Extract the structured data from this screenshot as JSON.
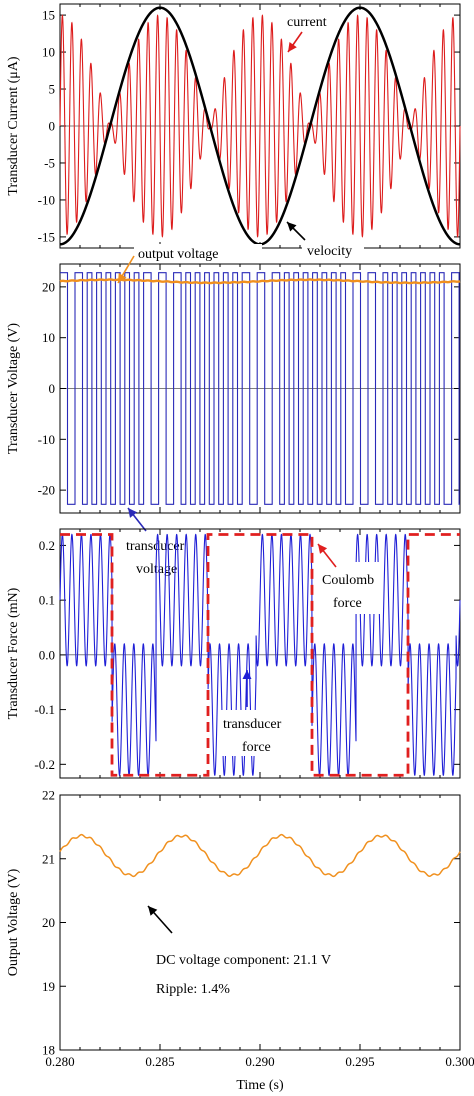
{
  "chart_data": [
    {
      "type": "line",
      "ylabel": "Transducer Current (μA)",
      "xlim": [
        0.28,
        0.3
      ],
      "ylim": [
        -16.5,
        16.5
      ],
      "yticks": [
        "-15",
        "-10",
        "-5",
        "0",
        "5",
        "10",
        "15"
      ],
      "series": [
        {
          "name": "current",
          "color": "#dd1c1c",
          "description": "high-frequency oscillation (carrier ~2.1 kHz) modulated by the velocity, amplitude ~15 μA, bursts around the velocity zero crossings"
        },
        {
          "name": "velocity",
          "color": "#000000",
          "x": [
            0.28,
            0.2825,
            0.285,
            0.2875,
            0.29,
            0.2925,
            0.295,
            0.2975,
            0.3
          ],
          "y": [
            -16,
            0,
            16,
            0,
            -16,
            0,
            16,
            0,
            -16
          ]
        }
      ],
      "annotations": [
        {
          "text": "current",
          "arrow_color": "#dd1c1c"
        },
        {
          "text": "velocity",
          "arrow_color": "#000000"
        }
      ]
    },
    {
      "type": "line",
      "ylabel": "Transducer Voltage (V)",
      "xlim": [
        0.28,
        0.3
      ],
      "ylim": [
        -24.5,
        24.5
      ],
      "yticks": [
        "-20",
        "-10",
        "0",
        "10",
        "20"
      ],
      "series": [
        {
          "name": "transducer voltage",
          "color": "#2a2ab8",
          "description": "square wave switching between +22.8 V and -22.8 V"
        },
        {
          "name": "output voltage",
          "color": "#f0901e",
          "x": [
            0.28,
            0.2825,
            0.285,
            0.2875,
            0.29,
            0.2925,
            0.295,
            0.2975,
            0.3
          ],
          "y": [
            21.1,
            21.4,
            21.1,
            20.8,
            21.1,
            21.4,
            21.1,
            20.8,
            21.1
          ]
        }
      ],
      "annotations": [
        {
          "text": "output  voltage",
          "arrow_color": "#f0901e"
        },
        {
          "text": "transducer",
          "arrow_color": "#2a2ab8"
        },
        {
          "text": "voltage",
          "arrow_color": "#2a2ab8"
        }
      ]
    },
    {
      "type": "line",
      "ylabel": "Transducer Force (mN)",
      "xlim": [
        0.28,
        0.3
      ],
      "ylim": [
        -0.225,
        0.23
      ],
      "yticks": [
        "-0.2",
        "-0.1",
        "0.0",
        "0.1",
        "0.2"
      ],
      "series": [
        {
          "name": "transducer force",
          "color": "#1f1fd6",
          "description": "switching between about +0.22 mN and -0.22 mN and a small offset, dense oscillation"
        },
        {
          "name": "Coulomb force",
          "color": "#e01f1f",
          "x": [
            0.28,
            0.2826,
            0.2826,
            0.2874,
            0.2874,
            0.2926,
            0.2926,
            0.2974,
            0.2974,
            0.3
          ],
          "y": [
            0.22,
            0.22,
            -0.22,
            -0.22,
            0.22,
            0.22,
            -0.22,
            -0.22,
            0.22,
            0.22
          ]
        }
      ],
      "annotations": [
        {
          "text": "Coulomb",
          "arrow_color": "#e01f1f"
        },
        {
          "text": "force",
          "arrow_color": "#e01f1f"
        },
        {
          "text": "transducer",
          "arrow_color": "#1f1fd6"
        },
        {
          "text": "force",
          "arrow_color": "#1f1fd6"
        }
      ]
    },
    {
      "type": "line",
      "ylabel": "Output Voltage (V)",
      "xlabel": "Time (s)",
      "xlim": [
        0.28,
        0.3
      ],
      "ylim": [
        18,
        22
      ],
      "xticks": [
        "0.280",
        "0.285",
        "0.290",
        "0.295",
        "0.300"
      ],
      "yticks": [
        "18",
        "19",
        "20",
        "21",
        "22"
      ],
      "series": [
        {
          "name": "output voltage",
          "color": "#f0901e",
          "x": [
            0.28,
            0.28125,
            0.2825,
            0.28375,
            0.285,
            0.28625,
            0.2875,
            0.28875,
            0.29,
            0.29125,
            0.2925,
            0.29375,
            0.295,
            0.29625,
            0.2975,
            0.29875,
            0.3
          ],
          "y": [
            21.1,
            21.3,
            21.38,
            21.05,
            20.75,
            20.95,
            21.38,
            21.05,
            20.75,
            20.95,
            21.38,
            21.05,
            20.75,
            20.95,
            21.38,
            21.05,
            20.75
          ]
        }
      ],
      "annotations": [
        {
          "text": "DC  voltage component: 21.1 V"
        },
        {
          "text": "Ripple: 1.4%"
        }
      ]
    }
  ]
}
